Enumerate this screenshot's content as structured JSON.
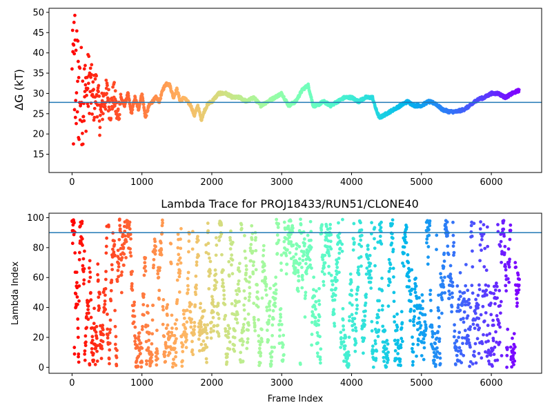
{
  "chart_data": [
    {
      "type": "scatter",
      "title": "",
      "xlabel": "",
      "ylabel": "ΔG (kT)",
      "xlim": [
        -330,
        6720
      ],
      "ylim": [
        10.5,
        51
      ],
      "xticks": [
        0,
        1000,
        2000,
        3000,
        4000,
        5000,
        6000
      ],
      "yticks": [
        15,
        20,
        25,
        30,
        35,
        40,
        45,
        50
      ],
      "reference_line": 27.8,
      "reference_line_color": "#1f77b4",
      "colormap": "rainbow",
      "color_direction": "red at frame 0 to violet at the last frame",
      "n_frames": 6400,
      "series": [
        {
          "description": "running free energy estimate per frame",
          "x": [
            0,
            50,
            100,
            150,
            200,
            250,
            300,
            350,
            400,
            450,
            500,
            550,
            600,
            650,
            700,
            750,
            800,
            850,
            900,
            950,
            1000,
            1050,
            1100,
            1150,
            1200,
            1250,
            1300,
            1350,
            1400,
            1450,
            1500,
            1550,
            1600,
            1650,
            1700,
            1750,
            1800,
            1850,
            1900,
            1950,
            2000,
            2100,
            2200,
            2300,
            2400,
            2500,
            2600,
            2700,
            2800,
            2900,
            3000,
            3100,
            3200,
            3300,
            3380,
            3450,
            3500,
            3600,
            3700,
            3800,
            3900,
            4000,
            4100,
            4200,
            4300,
            4350,
            4400,
            4500,
            4600,
            4700,
            4800,
            4900,
            5000,
            5100,
            5200,
            5300,
            5400,
            5500,
            5600,
            5700,
            5800,
            5900,
            6000,
            6100,
            6200,
            6300,
            6400
          ],
          "y": [
            30,
            33,
            31,
            29,
            30,
            33,
            28,
            31,
            24,
            28,
            30,
            26,
            30,
            24,
            29,
            27,
            30,
            25,
            29,
            26,
            30,
            24,
            27,
            28,
            29,
            28,
            31,
            32.5,
            32,
            29,
            31,
            28,
            29,
            28,
            27,
            24.5,
            27,
            23.5,
            26,
            27.5,
            28,
            30,
            30,
            29,
            29,
            28,
            29,
            27,
            28,
            29,
            30,
            27,
            28,
            31,
            32,
            27,
            27,
            28,
            27,
            28,
            29,
            29,
            28,
            29,
            29,
            26,
            24,
            25,
            26,
            27,
            28,
            27,
            27,
            28,
            27.5,
            26,
            25.5,
            25.5,
            26,
            27,
            28.5,
            29,
            30,
            30,
            29,
            30,
            30.8
          ]
        }
      ]
    },
    {
      "type": "scatter",
      "title": "Lambda Trace for PROJ18433/RUN51/CLONE40",
      "xlabel": "Frame Index",
      "ylabel": "Lambda Index",
      "xlim": [
        -330,
        6720
      ],
      "ylim": [
        -4,
        103
      ],
      "xticks": [
        0,
        1000,
        2000,
        3000,
        4000,
        5000,
        6000
      ],
      "yticks": [
        0,
        20,
        40,
        60,
        80,
        100
      ],
      "reference_line": 90,
      "reference_line_color": "#1f77b4",
      "colormap": "rainbow",
      "color_direction": "red at frame 0 to violet at the last frame",
      "value_range": [
        0,
        99
      ],
      "n_frames": 6400
    }
  ]
}
